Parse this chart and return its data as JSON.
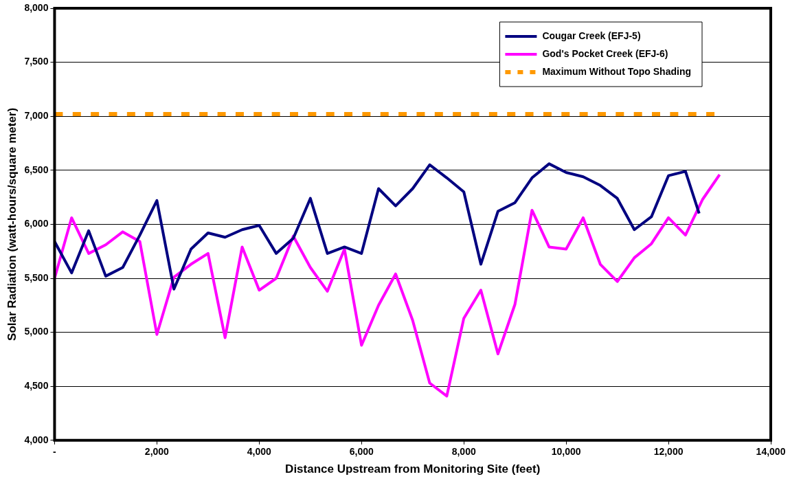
{
  "chart_data": {
    "type": "line",
    "xlabel": "Distance Upstream from Monitoring Site (feet)",
    "ylabel": "Solar Radiation (watt-hours/square meter)",
    "xlim": [
      0,
      14000
    ],
    "xticks": [
      {
        "value": 0,
        "label": "-"
      },
      {
        "value": 2000,
        "label": "2,000"
      },
      {
        "value": 4000,
        "label": "4,000"
      },
      {
        "value": 6000,
        "label": "6,000"
      },
      {
        "value": 8000,
        "label": "8,000"
      },
      {
        "value": 10000,
        "label": "10,000"
      },
      {
        "value": 12000,
        "label": "12,000"
      },
      {
        "value": 14000,
        "label": "14,000"
      }
    ],
    "ylim": [
      4000,
      8000
    ],
    "yticks": [
      {
        "value": 4000,
        "label": "4,000"
      },
      {
        "value": 4500,
        "label": "4,500"
      },
      {
        "value": 5000,
        "label": "5,000"
      },
      {
        "value": 5500,
        "label": "5,500"
      },
      {
        "value": 6000,
        "label": "6,000"
      },
      {
        "value": 6500,
        "label": "6,500"
      },
      {
        "value": 7000,
        "label": "7,000"
      },
      {
        "value": 7500,
        "label": "7,500"
      },
      {
        "value": 8000,
        "label": "8,000"
      }
    ],
    "grid": "y",
    "legend": "top right",
    "marker": "none",
    "series": [
      {
        "name": "Cougar Creek (EFJ-5)",
        "color": "#000080",
        "line_style": "solid",
        "x": [
          0,
          333,
          667,
          1000,
          1333,
          1667,
          2000,
          2333,
          2667,
          3000,
          3333,
          3667,
          4000,
          4333,
          4667,
          5000,
          5333,
          5667,
          6000,
          6333,
          6667,
          7000,
          7333,
          7667,
          8000,
          8333,
          8667,
          9000,
          9333,
          9667,
          10000,
          10333,
          10667,
          11000,
          11333,
          11667,
          12000,
          12333,
          12600
        ],
        "values": [
          5840,
          5550,
          5940,
          5520,
          5600,
          5900,
          6220,
          5400,
          5770,
          5920,
          5880,
          5950,
          5990,
          5730,
          5870,
          6240,
          5730,
          5790,
          5730,
          6330,
          6170,
          6330,
          6550,
          6430,
          6300,
          5630,
          6120,
          6200,
          6430,
          6560,
          6480,
          6440,
          6360,
          6240,
          5950,
          6070,
          6450,
          6490,
          6100
        ]
      },
      {
        "name": "God's Pocket Creek (EFJ-6)",
        "color": "#ff00ff",
        "line_style": "solid",
        "x": [
          0,
          333,
          667,
          1000,
          1333,
          1667,
          2000,
          2333,
          2667,
          3000,
          3333,
          3667,
          4000,
          4333,
          4667,
          5000,
          5333,
          5667,
          6000,
          6333,
          6667,
          7000,
          7333,
          7667,
          8000,
          8333,
          8667,
          9000,
          9333,
          9667,
          10000,
          10333,
          10667,
          11000,
          11333,
          11667,
          12000,
          12333,
          12667,
          13000
        ],
        "values": [
          5500,
          6060,
          5730,
          5810,
          5930,
          5840,
          4980,
          5510,
          5630,
          5730,
          4950,
          5790,
          5390,
          5500,
          5890,
          5600,
          5380,
          5770,
          4880,
          5250,
          5540,
          5110,
          4530,
          4410,
          5130,
          5390,
          4800,
          5260,
          6130,
          5790,
          5770,
          6060,
          5630,
          5470,
          5690,
          5820,
          6060,
          5900,
          6230,
          6460
        ]
      },
      {
        "name": "Maximum Without Topo Shading",
        "color": "#ff9900",
        "line_style": "dashed",
        "x": [
          0,
          12900
        ],
        "values": [
          7020,
          7020
        ]
      }
    ]
  }
}
